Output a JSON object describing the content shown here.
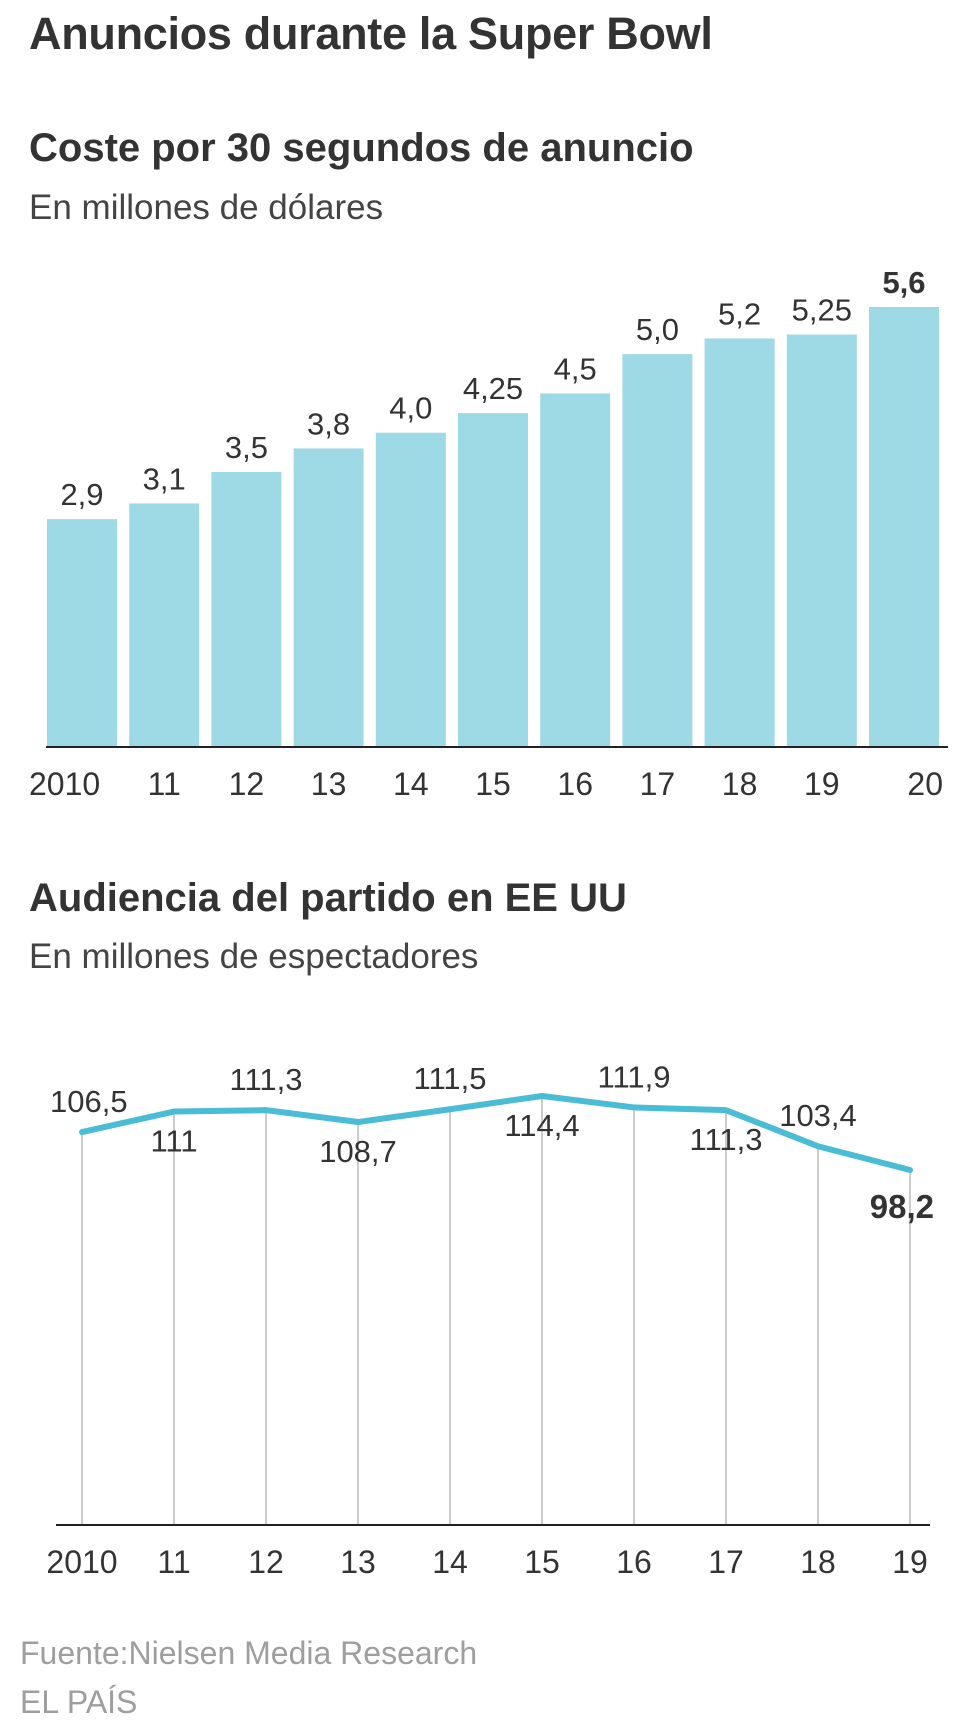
{
  "title": "Anuncios durante la Super Bowl",
  "colors": {
    "bar": "#9ed9e6",
    "line": "#4bbcd6",
    "axis": "#222222",
    "grid": "#aaaaaa",
    "text": "#333333",
    "muted": "#9e9e9e"
  },
  "chart_data": [
    {
      "type": "bar",
      "title": "Coste por 30 segundos de anuncio",
      "subtitle": "En millones de dólares",
      "categories": [
        "2010",
        "11",
        "12",
        "13",
        "14",
        "15",
        "16",
        "17",
        "18",
        "19",
        "20"
      ],
      "values": [
        2.9,
        3.1,
        3.5,
        3.8,
        4.0,
        4.25,
        4.5,
        5.0,
        5.2,
        5.25,
        5.6
      ],
      "value_labels": [
        "2,9",
        "3,1",
        "3,5",
        "3,8",
        "4,0",
        "4,25",
        "4,5",
        "5,0",
        "5,2",
        "5,25",
        "5,6"
      ],
      "highlight_last": true,
      "ylim": [
        0,
        5.6
      ],
      "xlabel": "",
      "ylabel": "",
      "grid": false
    },
    {
      "type": "line",
      "title": "Audiencia del partido en EE UU",
      "subtitle": "En millones de espectadores",
      "categories": [
        "2010",
        "11",
        "12",
        "13",
        "14",
        "15",
        "16",
        "17",
        "18",
        "19"
      ],
      "values": [
        106.5,
        111,
        111.3,
        108.7,
        111.5,
        114.4,
        111.9,
        111.3,
        103.4,
        98.2
      ],
      "value_labels": [
        "106,5",
        "111",
        "111,3",
        "108,7",
        "111,5",
        "114,4",
        "111,9",
        "111,3",
        "103,4",
        "98,2"
      ],
      "label_positions": [
        "above",
        "below",
        "above",
        "below",
        "above",
        "below",
        "above",
        "below",
        "above",
        "below"
      ],
      "highlight_last": true,
      "ylim": [
        0,
        120
      ],
      "xlabel": "",
      "ylabel": "",
      "grid": "vertical"
    }
  ],
  "footer": {
    "source": "Fuente:Nielsen Media Research",
    "brand": "EL PAÍS"
  }
}
